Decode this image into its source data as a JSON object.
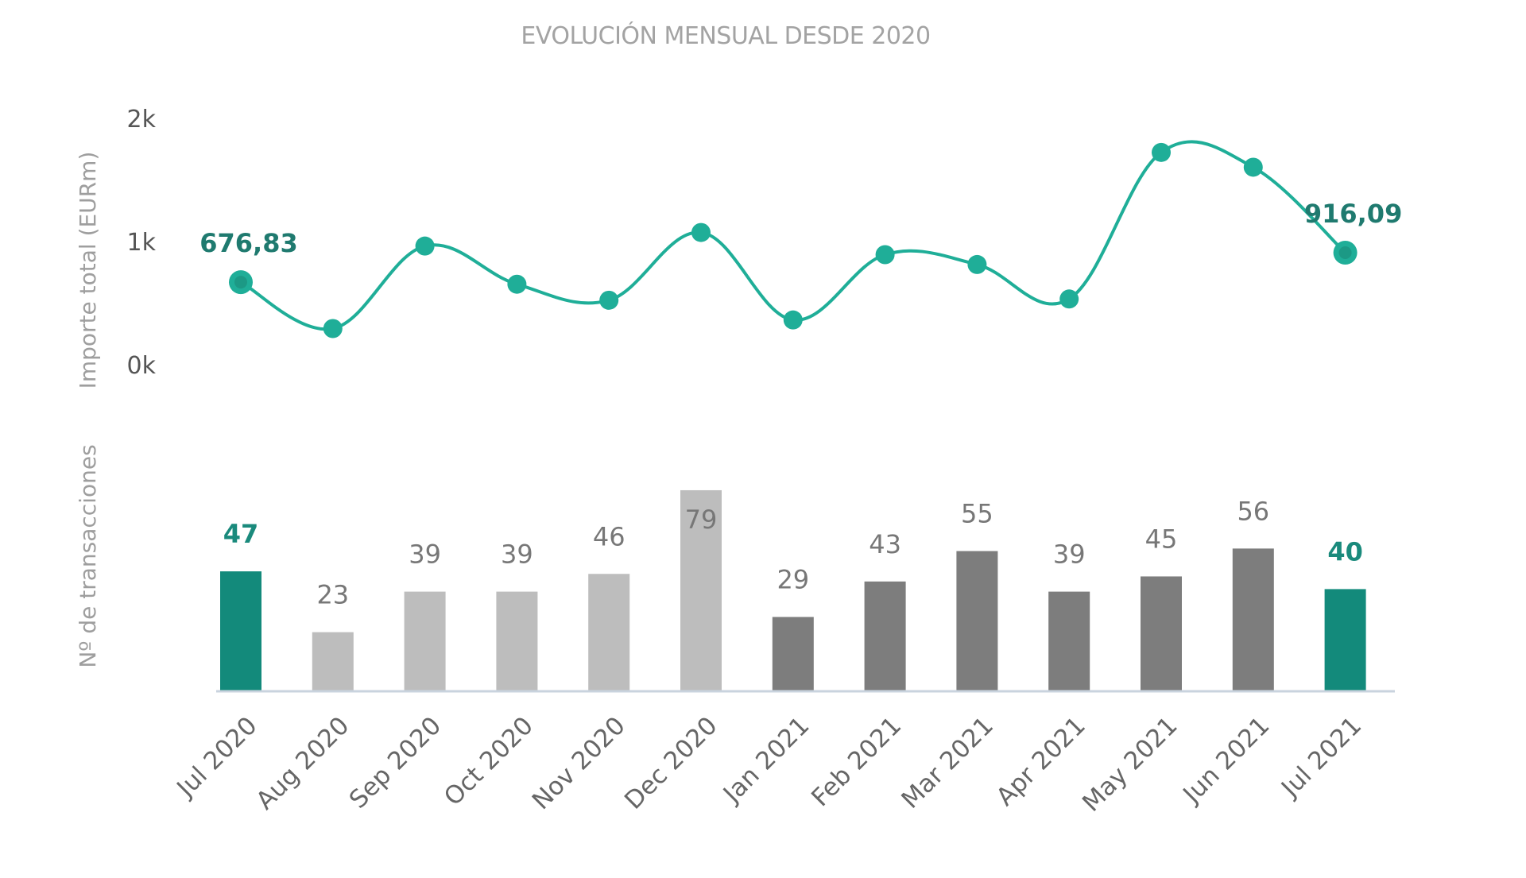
{
  "chart_data": [
    {
      "type": "line",
      "title": "EVOLUCIÓN MENSUAL DESDE 2020",
      "ylabel": "Importe total (EURm)",
      "ylim": [
        0,
        2000
      ],
      "yticks": [
        "0k",
        "1k",
        "2k"
      ],
      "x": [
        "Jul 2020",
        "Aug 2020",
        "Sep 2020",
        "Oct 2020",
        "Nov 2020",
        "Dec 2020",
        "Jan 2021",
        "Feb 2021",
        "Mar 2021",
        "Apr 2021",
        "May 2021",
        "Jun 2021",
        "Jul 2021"
      ],
      "values": [
        676.83,
        300,
        970,
        660,
        530,
        1080,
        370,
        900,
        820,
        540,
        1730,
        1610,
        916.09
      ],
      "data_labels": [
        "676,83",
        "",
        "",
        "",
        "",
        "",
        "",
        "",
        "",
        "",
        "",
        "",
        "916,09"
      ],
      "line_color": "#1fae98",
      "label_color": "#1f7a6f"
    },
    {
      "type": "bar",
      "ylabel": "Nº de transacciones",
      "categories": [
        "Jul 2020",
        "Aug 2020",
        "Sep 2020",
        "Oct 2020",
        "Nov 2020",
        "Dec 2020",
        "Jan 2021",
        "Feb 2021",
        "Mar 2021",
        "Apr 2021",
        "May 2021",
        "Jun 2021",
        "Jul 2021"
      ],
      "values": [
        47,
        23,
        39,
        39,
        46,
        79,
        29,
        43,
        55,
        39,
        45,
        56,
        40
      ],
      "data_labels": [
        "47",
        "23",
        "39",
        "39",
        "46",
        "79",
        "29",
        "43",
        "55",
        "39",
        "45",
        "56",
        "40"
      ],
      "bar_groups": [
        "highlight",
        "2020",
        "2020",
        "2020",
        "2020",
        "2020",
        "2021",
        "2021",
        "2021",
        "2021",
        "2021",
        "2021",
        "highlight"
      ],
      "colors": {
        "highlight": "#138a7b",
        "2020": "#bdbdbd",
        "2021": "#7d7d7d"
      },
      "axis_color": "#c9d3de"
    }
  ]
}
